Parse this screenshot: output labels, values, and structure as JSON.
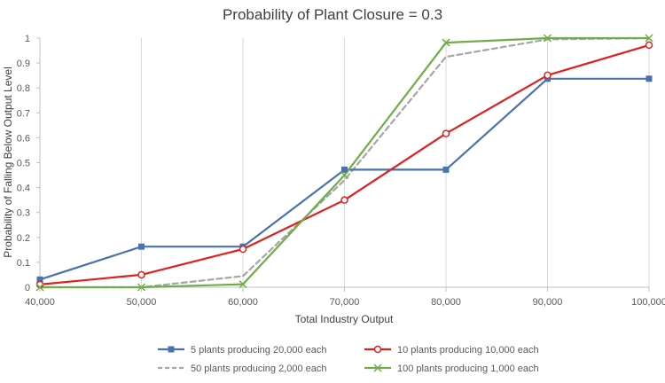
{
  "chart_data": {
    "type": "line",
    "title": "Probability of Plant Closure = 0.3",
    "xlabel": "Total Industry Output",
    "ylabel": "Probability of Falling Below Output Level",
    "x": [
      40000,
      50000,
      60000,
      70000,
      80000,
      90000,
      100000
    ],
    "x_tick_labels": [
      "40,000",
      "50,000",
      "60,000",
      "70,000",
      "80,000",
      "90,000",
      "100,000"
    ],
    "xlim": [
      40000,
      100000
    ],
    "ylim": [
      0,
      1
    ],
    "y_ticks": [
      0,
      0.1,
      0.2,
      0.3,
      0.4,
      0.5,
      0.6,
      0.7,
      0.8,
      0.9,
      1
    ],
    "y_tick_labels": [
      "0",
      "0.1",
      "0.2",
      "0.3",
      "0.4",
      "0.5",
      "0.6",
      "0.7",
      "0.8",
      "0.9",
      "1"
    ],
    "grid": "vertical",
    "legend_position": "bottom",
    "series": [
      {
        "name": "5 plants producing 20,000 each",
        "values": [
          0.031,
          0.163,
          0.163,
          0.472,
          0.472,
          0.837,
          0.837
        ],
        "color": "#4a72b0",
        "marker": "square",
        "dash": "solid"
      },
      {
        "name": "10 plants producing 10,000 each",
        "values": [
          0.011,
          0.05,
          0.153,
          0.35,
          0.617,
          0.851,
          0.972
        ],
        "color": "#e0201c",
        "marker": "circle",
        "dash": "solid"
      },
      {
        "name": "50 plants producing 2,000 each",
        "values": [
          0.0,
          0.0,
          0.045,
          0.43,
          0.925,
          0.995,
          1.0
        ],
        "color": "#a6a6a6",
        "marker": "none",
        "dash": "dashed"
      },
      {
        "name": "100 plants producing 1,000 each",
        "values": [
          0.0,
          0.0,
          0.012,
          0.45,
          0.982,
          1.0,
          1.0
        ],
        "color": "#70ad47",
        "marker": "x",
        "dash": "solid"
      }
    ]
  }
}
